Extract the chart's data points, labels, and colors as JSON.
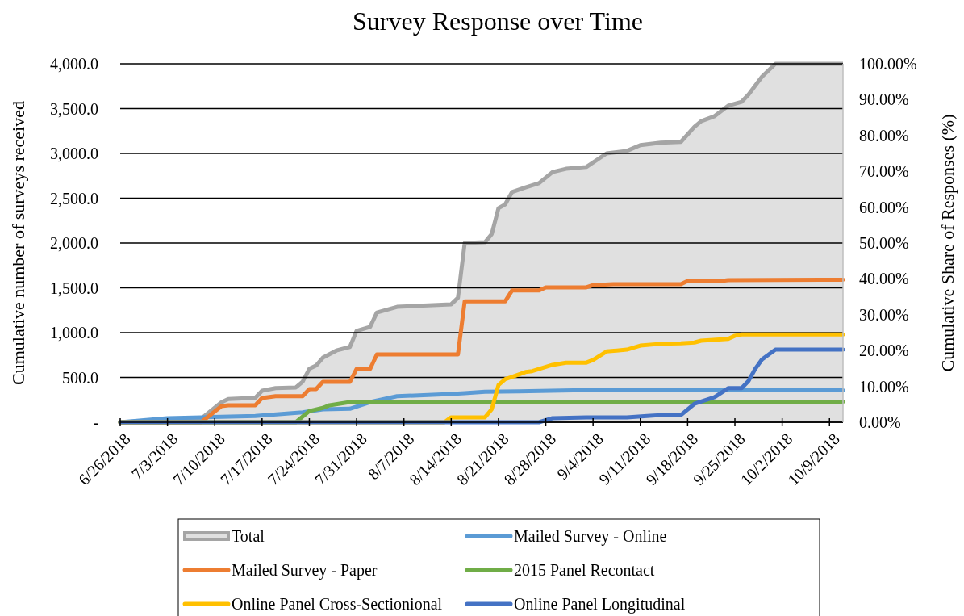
{
  "chart_data": {
    "type": "line",
    "title": "Survey Response over Time",
    "ylabel": "Cumulative number of surveys received",
    "y2label": "Cumulative Share of Responses (%)",
    "xlim": [
      "2018-06-26",
      "2018-10-11"
    ],
    "xticks": [
      {
        "value": "2018-06-26",
        "label": "6/26/2018"
      },
      {
        "value": "2018-07-03",
        "label": "7/3/2018"
      },
      {
        "value": "2018-07-10",
        "label": "7/10/2018"
      },
      {
        "value": "2018-07-17",
        "label": "7/17/2018"
      },
      {
        "value": "2018-07-24",
        "label": "7/24/2018"
      },
      {
        "value": "2018-07-31",
        "label": "7/31/2018"
      },
      {
        "value": "2018-08-07",
        "label": "8/7/2018"
      },
      {
        "value": "2018-08-14",
        "label": "8/14/2018"
      },
      {
        "value": "2018-08-21",
        "label": "8/21/2018"
      },
      {
        "value": "2018-08-28",
        "label": "8/28/2018"
      },
      {
        "value": "2018-09-04",
        "label": "9/4/2018"
      },
      {
        "value": "2018-09-11",
        "label": "9/11/2018"
      },
      {
        "value": "2018-09-18",
        "label": "9/18/2018"
      },
      {
        "value": "2018-09-25",
        "label": "9/25/2018"
      },
      {
        "value": "2018-10-02",
        "label": "10/2/2018"
      },
      {
        "value": "2018-10-09",
        "label": "10/9/2018"
      }
    ],
    "ylim": [
      0,
      4000
    ],
    "yticks": [
      {
        "value": 0,
        "label": "-"
      },
      {
        "value": 500,
        "label": "500.0"
      },
      {
        "value": 1000,
        "label": "1,000.0"
      },
      {
        "value": 1500,
        "label": "1,500.0"
      },
      {
        "value": 2000,
        "label": "2,000.0"
      },
      {
        "value": 2500,
        "label": "2,500.0"
      },
      {
        "value": 3000,
        "label": "3,000.0"
      },
      {
        "value": 3500,
        "label": "3,500.0"
      },
      {
        "value": 4000,
        "label": "4,000.0"
      }
    ],
    "y2lim": [
      0,
      100
    ],
    "y2ticks": [
      {
        "value": 0,
        "label": "0.00%"
      },
      {
        "value": 10,
        "label": "10.00%"
      },
      {
        "value": 20,
        "label": "20.00%"
      },
      {
        "value": 30,
        "label": "30.00%"
      },
      {
        "value": 40,
        "label": "40.00%"
      },
      {
        "value": 50,
        "label": "50.00%"
      },
      {
        "value": 60,
        "label": "60.00%"
      },
      {
        "value": 70,
        "label": "70.00%"
      },
      {
        "value": 80,
        "label": "80.00%"
      },
      {
        "value": 90,
        "label": "90.00%"
      },
      {
        "value": 100,
        "label": "100.00%"
      }
    ],
    "grid": "y",
    "legend": "bottom",
    "series": [
      {
        "name": "Total",
        "type": "area",
        "axis": "y2",
        "color": "#a5a5a5",
        "x": [
          "2018-06-26",
          "2018-07-08",
          "2018-07-11",
          "2018-07-12",
          "2018-07-16",
          "2018-07-17",
          "2018-07-19",
          "2018-07-22",
          "2018-07-23",
          "2018-07-24",
          "2018-07-25",
          "2018-07-26",
          "2018-07-28",
          "2018-07-30",
          "2018-07-31",
          "2018-08-02",
          "2018-08-03",
          "2018-08-06",
          "2018-08-14",
          "2018-08-15",
          "2018-08-16",
          "2018-08-19",
          "2018-08-20",
          "2018-08-21",
          "2018-08-22",
          "2018-08-23",
          "2018-08-25",
          "2018-08-27",
          "2018-08-29",
          "2018-08-31",
          "2018-09-03",
          "2018-09-06",
          "2018-09-09",
          "2018-09-11",
          "2018-09-14",
          "2018-09-17",
          "2018-09-19",
          "2018-09-20",
          "2018-09-22",
          "2018-09-24",
          "2018-09-26",
          "2018-09-27",
          "2018-09-29",
          "2018-10-01",
          "2018-10-11"
        ],
        "values": [
          0,
          1,
          5.6,
          6.5,
          6.8,
          8.8,
          9.5,
          9.7,
          11.3,
          14.9,
          15.8,
          18,
          20,
          21,
          25.5,
          26.6,
          30.6,
          32.2,
          32.9,
          34.7,
          50,
          50.2,
          52.5,
          59.7,
          60.8,
          64.2,
          65.5,
          66.7,
          69.8,
          70.7,
          71.2,
          75,
          75.7,
          77.3,
          78,
          78.2,
          82.4,
          84,
          85.4,
          88.3,
          89.4,
          91.4,
          96.4,
          100,
          100
        ]
      },
      {
        "name": "Mailed Survey - Online",
        "color": "#5b9bd5",
        "x": [
          "2018-06-26",
          "2018-07-03",
          "2018-07-08",
          "2018-07-16",
          "2018-07-23",
          "2018-07-26",
          "2018-07-30",
          "2018-08-02",
          "2018-08-06",
          "2018-08-14",
          "2018-08-16",
          "2018-08-19",
          "2018-08-24",
          "2018-09-01",
          "2018-10-11"
        ],
        "values": [
          0,
          45,
          55,
          70,
          110,
          145,
          150,
          225,
          290,
          315,
          325,
          340,
          345,
          355,
          355
        ]
      },
      {
        "name": "Mailed Survey - Paper",
        "color": "#ed7d31",
        "x": [
          "2018-06-26",
          "2018-07-08",
          "2018-07-11",
          "2018-07-12",
          "2018-07-16",
          "2018-07-17",
          "2018-07-19",
          "2018-07-23",
          "2018-07-24",
          "2018-07-25",
          "2018-07-26",
          "2018-07-30",
          "2018-07-31",
          "2018-08-02",
          "2018-08-03",
          "2018-08-15",
          "2018-08-16",
          "2018-08-22",
          "2018-08-23",
          "2018-08-27",
          "2018-08-28",
          "2018-09-03",
          "2018-09-04",
          "2018-09-07",
          "2018-09-17",
          "2018-09-18",
          "2018-09-23",
          "2018-09-24",
          "2018-10-11"
        ],
        "values": [
          0,
          0,
          180,
          190,
          190,
          270,
          290,
          290,
          370,
          370,
          450,
          450,
          595,
          595,
          757,
          757,
          1350,
          1350,
          1470,
          1470,
          1505,
          1505,
          1530,
          1540,
          1540,
          1577,
          1577,
          1585,
          1590
        ]
      },
      {
        "name": "2015 Panel Recontact",
        "color": "#70ad47",
        "x": [
          "2018-06-26",
          "2018-07-22",
          "2018-07-24",
          "2018-07-26",
          "2018-07-27",
          "2018-07-30",
          "2018-08-02",
          "2018-10-11"
        ],
        "values": [
          0,
          0,
          125,
          160,
          190,
          225,
          230,
          230
        ]
      },
      {
        "name": "Online Panel Cross-Sectionional",
        "color": "#ffc000",
        "x": [
          "2018-06-26",
          "2018-08-13",
          "2018-08-14",
          "2018-08-19",
          "2018-08-20",
          "2018-08-21",
          "2018-08-22",
          "2018-08-23",
          "2018-08-25",
          "2018-08-26",
          "2018-08-29",
          "2018-08-31",
          "2018-09-03",
          "2018-09-04",
          "2018-09-06",
          "2018-09-09",
          "2018-09-11",
          "2018-09-14",
          "2018-09-17",
          "2018-09-19",
          "2018-09-20",
          "2018-09-24",
          "2018-09-25",
          "2018-09-26",
          "2018-10-11"
        ],
        "values": [
          0,
          0,
          55,
          55,
          145,
          415,
          480,
          505,
          560,
          570,
          640,
          665,
          665,
          695,
          790,
          810,
          855,
          875,
          880,
          890,
          910,
          930,
          965,
          980,
          980
        ]
      },
      {
        "name": "Online Panel Longitudinal",
        "color": "#4472c4",
        "x": [
          "2018-06-26",
          "2018-08-27",
          "2018-08-29",
          "2018-09-03",
          "2018-09-09",
          "2018-09-12",
          "2018-09-14",
          "2018-09-17",
          "2018-09-19",
          "2018-09-22",
          "2018-09-24",
          "2018-09-26",
          "2018-09-27",
          "2018-09-28",
          "2018-09-29",
          "2018-10-01",
          "2018-10-11"
        ],
        "values": [
          0,
          0,
          45,
          55,
          55,
          70,
          80,
          80,
          205,
          280,
          380,
          380,
          460,
          595,
          700,
          810,
          810
        ]
      }
    ]
  }
}
